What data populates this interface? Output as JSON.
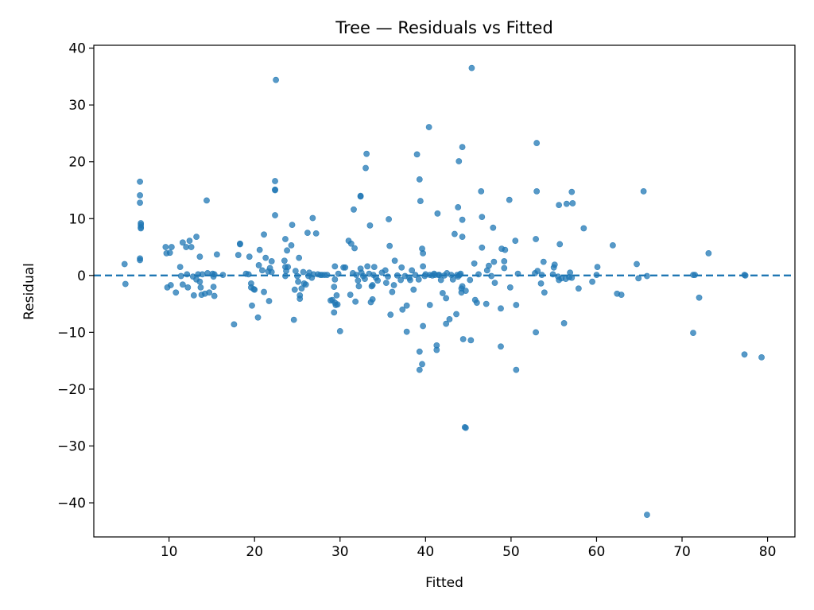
{
  "chart_data": {
    "type": "scatter",
    "title": "Tree — Residuals vs Fitted",
    "xlabel": "Fitted",
    "ylabel": "Residual",
    "xlim": [
      1.2,
      83.2
    ],
    "ylim": [
      -46,
      40.5
    ],
    "xticks": [
      10,
      20,
      30,
      40,
      50,
      60,
      70,
      80
    ],
    "yticks": [
      -40,
      -30,
      -20,
      -10,
      0,
      10,
      20,
      30,
      40
    ],
    "xtick_labels": [
      "10",
      "20",
      "30",
      "40",
      "50",
      "60",
      "70",
      "80"
    ],
    "ytick_labels": [
      "−40",
      "−30",
      "−20",
      "−10",
      "0",
      "10",
      "20",
      "30",
      "40"
    ],
    "grid": false,
    "reference_line": {
      "y": 0,
      "style": "dashed"
    },
    "marker_color": "#1f77b4",
    "points": [
      [
        4.8,
        2.0
      ],
      [
        4.9,
        -1.5
      ],
      [
        6.6,
        16.5
      ],
      [
        6.6,
        14.1
      ],
      [
        6.6,
        12.8
      ],
      [
        6.7,
        9.2
      ],
      [
        6.7,
        8.9
      ],
      [
        6.7,
        8.5
      ],
      [
        6.7,
        8.3
      ],
      [
        6.6,
        3.0
      ],
      [
        6.6,
        2.7
      ],
      [
        9.6,
        5.0
      ],
      [
        9.7,
        3.9
      ],
      [
        10.1,
        4.0
      ],
      [
        10.3,
        5.0
      ],
      [
        9.8,
        -2.1
      ],
      [
        10.2,
        -1.7
      ],
      [
        10.8,
        -3.0
      ],
      [
        11.3,
        1.5
      ],
      [
        11.4,
        -0.1
      ],
      [
        11.6,
        -1.6
      ],
      [
        11.6,
        5.8
      ],
      [
        12.0,
        5.0
      ],
      [
        12.1,
        0.2
      ],
      [
        12.2,
        -2.1
      ],
      [
        12.4,
        6.1
      ],
      [
        12.6,
        5.0
      ],
      [
        12.8,
        -0.2
      ],
      [
        12.9,
        -3.5
      ],
      [
        13.2,
        6.8
      ],
      [
        13.2,
        -0.7
      ],
      [
        13.4,
        0.2
      ],
      [
        13.6,
        -1.1
      ],
      [
        13.6,
        3.3
      ],
      [
        13.7,
        -2.1
      ],
      [
        13.8,
        -3.4
      ],
      [
        13.9,
        0.2
      ],
      [
        14.2,
        -3.2
      ],
      [
        14.4,
        13.2
      ],
      [
        14.5,
        0.4
      ],
      [
        14.7,
        -3.0
      ],
      [
        15.1,
        0.3
      ],
      [
        15.2,
        -0.2
      ],
      [
        15.2,
        -2.0
      ],
      [
        15.3,
        -3.6
      ],
      [
        15.3,
        0.2
      ],
      [
        15.6,
        3.7
      ],
      [
        16.3,
        0.1
      ],
      [
        17.6,
        -8.6
      ],
      [
        18.1,
        3.6
      ],
      [
        18.3,
        5.6
      ],
      [
        18.3,
        5.5
      ],
      [
        19.0,
        0.3
      ],
      [
        19.3,
        0.2
      ],
      [
        19.4,
        3.3
      ],
      [
        19.6,
        -1.4
      ],
      [
        19.6,
        -2.1
      ],
      [
        19.7,
        -5.3
      ],
      [
        19.9,
        -2.4
      ],
      [
        20.0,
        -2.5
      ],
      [
        20.4,
        -7.4
      ],
      [
        20.5,
        1.8
      ],
      [
        20.6,
        4.5
      ],
      [
        20.9,
        0.9
      ],
      [
        21.1,
        -2.9
      ],
      [
        21.1,
        7.2
      ],
      [
        21.3,
        3.1
      ],
      [
        21.6,
        0.7
      ],
      [
        21.7,
        -4.5
      ],
      [
        21.8,
        1.3
      ],
      [
        22.0,
        2.5
      ],
      [
        22.0,
        0.6
      ],
      [
        22.4,
        16.6
      ],
      [
        22.4,
        15.1
      ],
      [
        22.4,
        15.0
      ],
      [
        22.4,
        10.6
      ],
      [
        22.5,
        34.4
      ],
      [
        23.5,
        2.6
      ],
      [
        23.6,
        6.4
      ],
      [
        23.6,
        -0.1
      ],
      [
        23.6,
        1.5
      ],
      [
        23.7,
        0.8
      ],
      [
        23.8,
        4.4
      ],
      [
        23.9,
        1.5
      ],
      [
        24.3,
        5.3
      ],
      [
        24.4,
        8.9
      ],
      [
        24.6,
        -7.8
      ],
      [
        24.7,
        -2.5
      ],
      [
        24.8,
        0.8
      ],
      [
        25.0,
        -0.1
      ],
      [
        25.1,
        -1.1
      ],
      [
        25.2,
        3.1
      ],
      [
        25.3,
        -3.5
      ],
      [
        25.3,
        -4.1
      ],
      [
        25.5,
        -2.3
      ],
      [
        25.7,
        0.6
      ],
      [
        25.8,
        -1.4
      ],
      [
        26.0,
        -1.6
      ],
      [
        26.2,
        7.5
      ],
      [
        26.3,
        -0.1
      ],
      [
        26.4,
        0.5
      ],
      [
        26.7,
        -0.4
      ],
      [
        26.8,
        10.1
      ],
      [
        26.9,
        0.2
      ],
      [
        27.2,
        7.4
      ],
      [
        27.4,
        0.2
      ],
      [
        27.7,
        0.1
      ],
      [
        27.9,
        0.1
      ],
      [
        28.2,
        0.1
      ],
      [
        28.5,
        0.1
      ],
      [
        28.9,
        -4.4
      ],
      [
        29.1,
        -4.3
      ],
      [
        29.3,
        -6.5
      ],
      [
        29.3,
        -2.0
      ],
      [
        29.4,
        -4.8
      ],
      [
        29.4,
        -0.7
      ],
      [
        29.4,
        1.6
      ],
      [
        29.5,
        -5.2
      ],
      [
        29.6,
        -3.5
      ],
      [
        29.7,
        -5.1
      ],
      [
        29.8,
        0.3
      ],
      [
        30.0,
        -9.8
      ],
      [
        30.4,
        1.4
      ],
      [
        30.6,
        1.4
      ],
      [
        31.0,
        6.1
      ],
      [
        31.2,
        -3.4
      ],
      [
        31.3,
        5.6
      ],
      [
        31.5,
        0.4
      ],
      [
        31.6,
        11.6
      ],
      [
        31.7,
        4.8
      ],
      [
        31.8,
        -4.6
      ],
      [
        31.9,
        0.1
      ],
      [
        32.1,
        -0.9
      ],
      [
        32.2,
        -1.9
      ],
      [
        32.4,
        14.0
      ],
      [
        32.4,
        13.9
      ],
      [
        32.4,
        1.2
      ],
      [
        32.5,
        0.5
      ],
      [
        32.7,
        -0.1
      ],
      [
        32.9,
        -0.6
      ],
      [
        33.0,
        18.9
      ],
      [
        33.1,
        21.4
      ],
      [
        33.2,
        1.6
      ],
      [
        33.4,
        0.3
      ],
      [
        33.5,
        8.8
      ],
      [
        33.6,
        -4.7
      ],
      [
        33.7,
        -1.9
      ],
      [
        33.8,
        -4.2
      ],
      [
        33.8,
        -1.7
      ],
      [
        33.9,
        0.1
      ],
      [
        34.0,
        1.5
      ],
      [
        34.2,
        -0.4
      ],
      [
        34.4,
        -0.9
      ],
      [
        34.9,
        0.5
      ],
      [
        35.3,
        0.9
      ],
      [
        35.4,
        -1.3
      ],
      [
        35.6,
        -0.2
      ],
      [
        35.7,
        9.9
      ],
      [
        35.8,
        5.2
      ],
      [
        35.9,
        -6.9
      ],
      [
        36.1,
        -2.9
      ],
      [
        36.3,
        -1.7
      ],
      [
        36.4,
        2.6
      ],
      [
        36.7,
        0.0
      ],
      [
        37.1,
        -0.8
      ],
      [
        37.2,
        1.4
      ],
      [
        37.3,
        -6.0
      ],
      [
        37.6,
        -0.1
      ],
      [
        37.8,
        -5.3
      ],
      [
        37.8,
        -9.9
      ],
      [
        38.1,
        -0.4
      ],
      [
        38.2,
        -0.8
      ],
      [
        38.4,
        0.9
      ],
      [
        38.6,
        -2.5
      ],
      [
        38.8,
        0.1
      ],
      [
        39.0,
        21.3
      ],
      [
        39.2,
        -0.7
      ],
      [
        39.3,
        16.9
      ],
      [
        39.3,
        -13.4
      ],
      [
        39.3,
        -16.6
      ],
      [
        39.4,
        13.1
      ],
      [
        39.6,
        -15.6
      ],
      [
        39.6,
        4.7
      ],
      [
        39.7,
        -8.9
      ],
      [
        39.7,
        1.6
      ],
      [
        39.7,
        3.9
      ],
      [
        39.9,
        -0.1
      ],
      [
        40.0,
        0.2
      ],
      [
        40.4,
        26.1
      ],
      [
        40.5,
        -5.2
      ],
      [
        40.5,
        0.1
      ],
      [
        40.8,
        0.0
      ],
      [
        41.0,
        0.3
      ],
      [
        41.1,
        0.1
      ],
      [
        41.3,
        -13.1
      ],
      [
        41.3,
        -12.3
      ],
      [
        41.4,
        10.9
      ],
      [
        41.5,
        0.1
      ],
      [
        41.6,
        0.1
      ],
      [
        41.8,
        -0.8
      ],
      [
        42.0,
        -3.1
      ],
      [
        42.2,
        0.0
      ],
      [
        42.4,
        -4.0
      ],
      [
        42.4,
        -8.5
      ],
      [
        42.5,
        0.4
      ],
      [
        42.8,
        -7.7
      ],
      [
        43.0,
        0.1
      ],
      [
        43.2,
        -0.7
      ],
      [
        43.4,
        7.3
      ],
      [
        43.6,
        -6.8
      ],
      [
        43.7,
        0.1
      ],
      [
        43.8,
        -0.2
      ],
      [
        43.8,
        12.0
      ],
      [
        43.9,
        20.1
      ],
      [
        44.0,
        0.1
      ],
      [
        44.1,
        0.3
      ],
      [
        44.2,
        -3.0
      ],
      [
        44.2,
        -2.3
      ],
      [
        44.3,
        -1.9
      ],
      [
        44.3,
        22.6
      ],
      [
        44.3,
        9.8
      ],
      [
        44.3,
        6.8
      ],
      [
        44.4,
        -11.2
      ],
      [
        44.6,
        -26.7
      ],
      [
        44.7,
        -26.8
      ],
      [
        44.7,
        -2.7
      ],
      [
        45.2,
        -0.8
      ],
      [
        45.3,
        -11.4
      ],
      [
        45.4,
        36.5
      ],
      [
        45.7,
        2.1
      ],
      [
        45.8,
        -4.3
      ],
      [
        46.0,
        -4.8
      ],
      [
        46.2,
        0.2
      ],
      [
        46.5,
        14.8
      ],
      [
        46.6,
        4.9
      ],
      [
        46.6,
        10.3
      ],
      [
        47.1,
        -5.0
      ],
      [
        47.2,
        0.9
      ],
      [
        47.4,
        1.7
      ],
      [
        47.7,
        -0.1
      ],
      [
        47.9,
        8.4
      ],
      [
        48.0,
        2.4
      ],
      [
        48.1,
        -1.3
      ],
      [
        48.8,
        -5.8
      ],
      [
        48.8,
        -12.5
      ],
      [
        48.9,
        4.7
      ],
      [
        49.2,
        2.5
      ],
      [
        49.2,
        1.3
      ],
      [
        49.3,
        4.5
      ],
      [
        49.8,
        13.3
      ],
      [
        49.9,
        -2.1
      ],
      [
        50.5,
        6.1
      ],
      [
        50.6,
        -5.2
      ],
      [
        50.6,
        -16.6
      ],
      [
        50.8,
        0.3
      ],
      [
        52.8,
        0.4
      ],
      [
        52.9,
        6.4
      ],
      [
        52.9,
        -10.0
      ],
      [
        53.0,
        23.3
      ],
      [
        53.0,
        14.8
      ],
      [
        53.1,
        0.8
      ],
      [
        53.5,
        -1.4
      ],
      [
        53.6,
        0.1
      ],
      [
        53.8,
        2.4
      ],
      [
        53.9,
        -3.0
      ],
      [
        54.9,
        0.2
      ],
      [
        55.0,
        1.4
      ],
      [
        55.1,
        1.9
      ],
      [
        55.5,
        -0.2
      ],
      [
        55.6,
        12.4
      ],
      [
        55.6,
        -0.8
      ],
      [
        55.7,
        5.5
      ],
      [
        55.9,
        -0.5
      ],
      [
        56.2,
        -8.4
      ],
      [
        56.4,
        -0.6
      ],
      [
        56.5,
        12.6
      ],
      [
        56.8,
        -0.3
      ],
      [
        56.9,
        0.5
      ],
      [
        57.1,
        -0.4
      ],
      [
        57.1,
        14.7
      ],
      [
        57.2,
        12.7
      ],
      [
        57.9,
        -2.3
      ],
      [
        58.5,
        8.3
      ],
      [
        59.5,
        -1.1
      ],
      [
        60.0,
        0.1
      ],
      [
        60.1,
        1.5
      ],
      [
        61.9,
        5.3
      ],
      [
        62.4,
        -3.2
      ],
      [
        62.9,
        -3.4
      ],
      [
        64.7,
        2.0
      ],
      [
        64.9,
        -0.5
      ],
      [
        65.5,
        14.8
      ],
      [
        65.9,
        -0.1
      ],
      [
        65.9,
        -42.1
      ],
      [
        71.3,
        0.1
      ],
      [
        71.3,
        -10.1
      ],
      [
        71.5,
        0.1
      ],
      [
        72.0,
        -3.9
      ],
      [
        73.1,
        3.9
      ],
      [
        77.3,
        0.1
      ],
      [
        77.4,
        0.0
      ],
      [
        77.3,
        -13.9
      ],
      [
        79.3,
        -14.4
      ]
    ]
  }
}
